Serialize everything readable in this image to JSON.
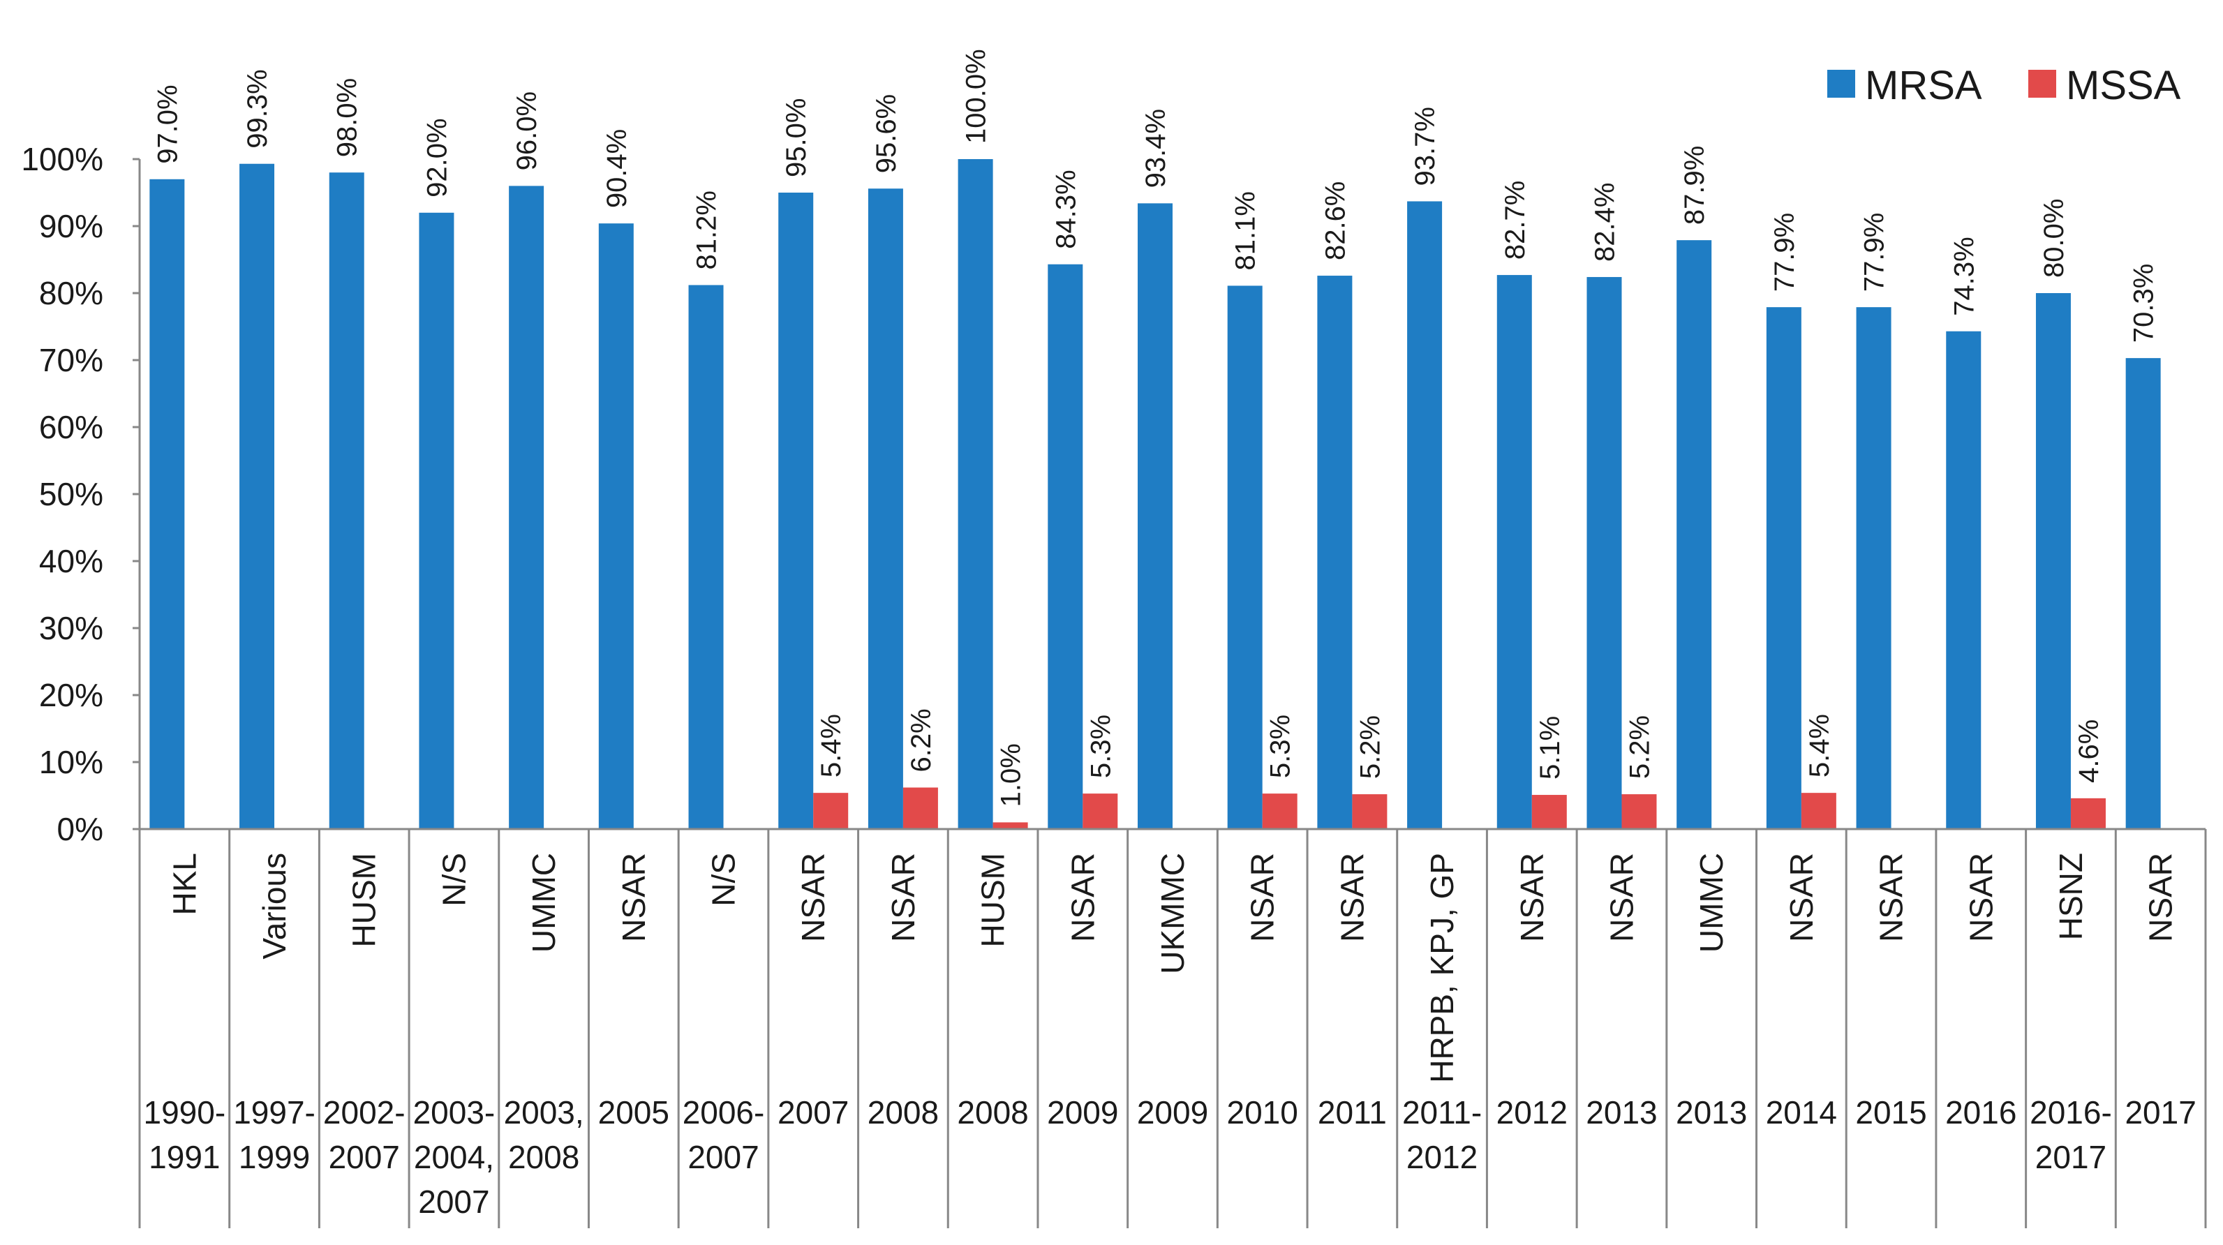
{
  "chart_data": {
    "type": "bar",
    "title": "",
    "xlabel": "",
    "ylabel": "",
    "ylim": [
      0,
      100
    ],
    "yticks": [
      0,
      10,
      20,
      30,
      40,
      50,
      60,
      70,
      80,
      90,
      100
    ],
    "ytick_labels": [
      "0%",
      "10%",
      "20%",
      "30%",
      "40%",
      "50%",
      "60%",
      "70%",
      "80%",
      "90%",
      "100%"
    ],
    "grid": false,
    "legend_position": "top-right",
    "categories": [
      {
        "site": "HKL",
        "years": [
          "1990-",
          "1991"
        ]
      },
      {
        "site": "Various",
        "years": [
          "1997-",
          "1999"
        ]
      },
      {
        "site": "HUSM",
        "years": [
          "2002-",
          "2007"
        ]
      },
      {
        "site": "N/S",
        "years": [
          "2003-",
          "2004,",
          "2007"
        ]
      },
      {
        "site": "UMMC",
        "years": [
          "2003,",
          "2008"
        ]
      },
      {
        "site": "NSAR",
        "years": [
          "2005"
        ]
      },
      {
        "site": "N/S",
        "years": [
          "2006-",
          "2007"
        ]
      },
      {
        "site": "NSAR",
        "years": [
          "2007"
        ]
      },
      {
        "site": "NSAR",
        "years": [
          "2008"
        ]
      },
      {
        "site": "HUSM",
        "years": [
          "2008"
        ]
      },
      {
        "site": "NSAR",
        "years": [
          "2009"
        ]
      },
      {
        "site": "UKMMC",
        "years": [
          "2009"
        ]
      },
      {
        "site": "NSAR",
        "years": [
          "2010"
        ]
      },
      {
        "site": "NSAR",
        "years": [
          "2011"
        ]
      },
      {
        "site": "HRPB, KPJ, GP",
        "years": [
          "2011-",
          "2012"
        ]
      },
      {
        "site": "NSAR",
        "years": [
          "2012"
        ]
      },
      {
        "site": "NSAR",
        "years": [
          "2013"
        ]
      },
      {
        "site": "UMMC",
        "years": [
          "2013"
        ]
      },
      {
        "site": "NSAR",
        "years": [
          "2014"
        ]
      },
      {
        "site": "NSAR",
        "years": [
          "2015"
        ]
      },
      {
        "site": "NSAR",
        "years": [
          "2016"
        ]
      },
      {
        "site": "HSNZ",
        "years": [
          "2016-",
          "2017"
        ]
      },
      {
        "site": "NSAR",
        "years": [
          "2017"
        ]
      }
    ],
    "series": [
      {
        "name": "MRSA",
        "color": "#1f7dc4",
        "values": [
          97.0,
          99.3,
          98.0,
          92.0,
          96.0,
          90.4,
          81.2,
          95.0,
          95.6,
          100.0,
          84.3,
          93.4,
          81.1,
          82.6,
          93.7,
          82.7,
          82.4,
          87.9,
          77.9,
          77.9,
          74.3,
          80.0,
          70.3
        ],
        "labels": [
          "97.0%",
          "99.3%",
          "98.0%",
          "92.0%",
          "96.0%",
          "90.4%",
          "81.2%",
          "95.0%",
          "95.6%",
          "100.0%",
          "84.3%",
          "93.4%",
          "81.1%",
          "82.6%",
          "93.7%",
          "82.7%",
          "82.4%",
          "87.9%",
          "77.9%",
          "77.9%",
          "74.3%",
          "80.0%",
          "70.3%"
        ]
      },
      {
        "name": "MSSA",
        "color": "#e24a4a",
        "values": [
          null,
          null,
          null,
          null,
          null,
          null,
          null,
          5.4,
          6.2,
          1.0,
          5.3,
          null,
          5.3,
          5.2,
          null,
          5.1,
          5.2,
          null,
          5.4,
          null,
          null,
          4.6,
          null
        ],
        "labels": [
          null,
          null,
          null,
          null,
          null,
          null,
          null,
          "5.4%",
          "6.2%",
          "1.0%",
          "5.3%",
          null,
          "5.3%",
          "5.2%",
          null,
          "5.1%",
          "5.2%",
          null,
          "5.4%",
          null,
          null,
          "4.6%",
          null
        ]
      }
    ]
  }
}
